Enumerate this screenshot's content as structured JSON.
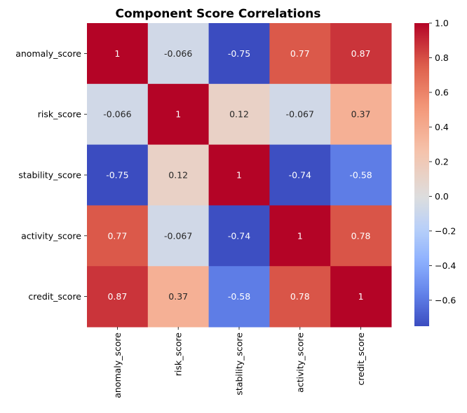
{
  "chart_data": {
    "type": "heatmap",
    "title": "Component Score Correlations",
    "xlabel": "",
    "ylabel": "",
    "row_labels": [
      "anomaly_score",
      "risk_score",
      "stability_score",
      "activity_score",
      "credit_score"
    ],
    "col_labels": [
      "anomaly_score",
      "risk_score",
      "stability_score",
      "activity_score",
      "credit_score"
    ],
    "values": [
      [
        1,
        -0.066,
        -0.75,
        0.77,
        0.87
      ],
      [
        -0.066,
        1,
        0.12,
        -0.067,
        0.37
      ],
      [
        -0.75,
        0.12,
        1,
        -0.74,
        -0.58
      ],
      [
        0.77,
        -0.067,
        -0.74,
        1,
        0.78
      ],
      [
        0.87,
        0.37,
        -0.58,
        0.78,
        1
      ]
    ],
    "cell_labels": [
      [
        "1",
        "-0.066",
        "-0.75",
        "0.77",
        "0.87"
      ],
      [
        "-0.066",
        "1",
        "0.12",
        "-0.067",
        "0.37"
      ],
      [
        "-0.75",
        "0.12",
        "1",
        "-0.74",
        "-0.58"
      ],
      [
        "0.77",
        "-0.067",
        "-0.74",
        "1",
        "0.78"
      ],
      [
        "0.87",
        "0.37",
        "-0.58",
        "0.78",
        "1"
      ]
    ],
    "colormap": "coolwarm",
    "color_center": 0,
    "colorbar": {
      "range": [
        -0.75,
        1.0
      ],
      "tick_values": [
        -0.6,
        -0.4,
        -0.2,
        0.0,
        0.2,
        0.4,
        0.6,
        0.8,
        1.0
      ],
      "tick_labels": [
        "−0.6",
        "−0.4",
        "−0.2",
        "0.0",
        "0.2",
        "0.4",
        "0.6",
        "0.8",
        "1.0"
      ]
    }
  }
}
